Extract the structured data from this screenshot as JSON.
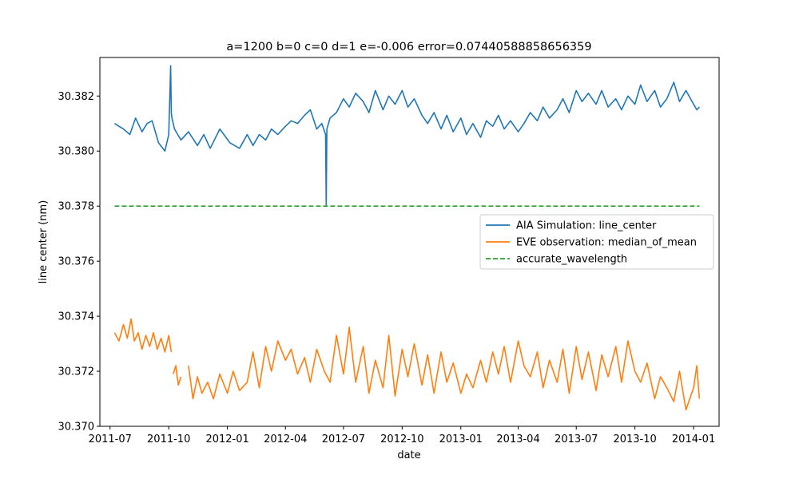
{
  "chart_data": {
    "type": "line",
    "title": "a=1200 b=0 c=0 d=1 e=-0.006 error=0.07440588858656359",
    "xlabel": "date",
    "ylabel": "line center (nm)",
    "ylim": [
      30.37,
      30.3834
    ],
    "xlim": [
      "2011-06-15",
      "2014-02-10"
    ],
    "x_ticks": [
      "2011-07",
      "2011-10",
      "2012-01",
      "2012-04",
      "2012-07",
      "2012-10",
      "2013-01",
      "2013-04",
      "2013-07",
      "2013-10",
      "2014-01"
    ],
    "y_ticks": [
      "30.370",
      "30.372",
      "30.374",
      "30.376",
      "30.378",
      "30.380",
      "30.382"
    ],
    "legend_position": "center-right",
    "grid": false,
    "series": [
      {
        "name": "AIA Simulation: line_center",
        "color": "#1f77b4",
        "style": "solid",
        "x": [
          "2011-07-08",
          "2011-07-15",
          "2011-07-22",
          "2011-08-01",
          "2011-08-10",
          "2011-08-20",
          "2011-08-28",
          "2011-09-05",
          "2011-09-15",
          "2011-09-25",
          "2011-10-01",
          "2011-10-04",
          "2011-10-05",
          "2011-10-06",
          "2011-10-10",
          "2011-10-20",
          "2011-11-01",
          "2011-11-15",
          "2011-11-25",
          "2011-12-05",
          "2011-12-20",
          "2012-01-05",
          "2012-01-20",
          "2012-02-01",
          "2012-02-10",
          "2012-02-20",
          "2012-03-01",
          "2012-03-10",
          "2012-03-20",
          "2012-04-01",
          "2012-04-10",
          "2012-04-20",
          "2012-05-01",
          "2012-05-10",
          "2012-05-20",
          "2012-05-28",
          "2012-06-03",
          "2012-06-04",
          "2012-06-05",
          "2012-06-10",
          "2012-06-20",
          "2012-07-01",
          "2012-07-10",
          "2012-07-20",
          "2012-08-01",
          "2012-08-10",
          "2012-08-20",
          "2012-09-01",
          "2012-09-10",
          "2012-09-20",
          "2012-10-01",
          "2012-10-10",
          "2012-10-20",
          "2012-11-01",
          "2012-11-10",
          "2012-11-20",
          "2012-12-01",
          "2012-12-10",
          "2012-12-20",
          "2013-01-01",
          "2013-01-10",
          "2013-01-20",
          "2013-02-01",
          "2013-02-10",
          "2013-02-20",
          "2013-03-01",
          "2013-03-10",
          "2013-03-20",
          "2013-04-01",
          "2013-04-10",
          "2013-04-20",
          "2013-05-01",
          "2013-05-10",
          "2013-05-20",
          "2013-06-01",
          "2013-06-10",
          "2013-06-20",
          "2013-07-01",
          "2013-07-10",
          "2013-07-20",
          "2013-08-01",
          "2013-08-10",
          "2013-08-20",
          "2013-09-01",
          "2013-09-10",
          "2013-09-20",
          "2013-10-01",
          "2013-10-10",
          "2013-10-20",
          "2013-11-01",
          "2013-11-10",
          "2013-11-20",
          "2013-12-01",
          "2013-12-10",
          "2013-12-20",
          "2014-01-01",
          "2014-01-06",
          "2014-01-10"
        ],
        "y": [
          30.381,
          30.3809,
          30.3808,
          30.3806,
          30.3812,
          30.3807,
          30.381,
          30.3811,
          30.3803,
          30.38,
          30.3806,
          30.3831,
          30.3814,
          30.3812,
          30.3808,
          30.3804,
          30.3807,
          30.3802,
          30.3806,
          30.3801,
          30.3808,
          30.3803,
          30.3801,
          30.3806,
          30.3802,
          30.3806,
          30.3804,
          30.3808,
          30.3806,
          30.3809,
          30.3811,
          30.381,
          30.3813,
          30.3815,
          30.3808,
          30.381,
          30.3806,
          30.378,
          30.3808,
          30.3812,
          30.3814,
          30.3819,
          30.3816,
          30.3821,
          30.3818,
          30.3814,
          30.3822,
          30.3815,
          30.382,
          30.3817,
          30.3822,
          30.3816,
          30.3819,
          30.3813,
          30.381,
          30.3814,
          30.3808,
          30.3813,
          30.3807,
          30.3812,
          30.3806,
          30.381,
          30.3805,
          30.3811,
          30.3809,
          30.3813,
          30.3808,
          30.3811,
          30.3807,
          30.381,
          30.3814,
          30.3811,
          30.3816,
          30.3812,
          30.3815,
          30.3819,
          30.3814,
          30.3822,
          30.3818,
          30.3821,
          30.3817,
          30.3822,
          30.3816,
          30.3819,
          30.3815,
          30.382,
          30.3817,
          30.3824,
          30.3818,
          30.3822,
          30.3816,
          30.3819,
          30.3825,
          30.3818,
          30.3822,
          30.3817,
          30.3815,
          30.3816
        ]
      },
      {
        "name": "EVE observation: median_of_mean",
        "color": "#ff7f0e",
        "style": "solid",
        "segments": [
          {
            "x": [
              "2011-07-08",
              "2011-07-15",
              "2011-07-22",
              "2011-07-28",
              "2011-08-03",
              "2011-08-08",
              "2011-08-14",
              "2011-08-20",
              "2011-08-26",
              "2011-09-01",
              "2011-09-07",
              "2011-09-13",
              "2011-09-19",
              "2011-09-25",
              "2011-10-01",
              "2011-10-05"
            ],
            "y": [
              30.3734,
              30.3731,
              30.3737,
              30.3732,
              30.3739,
              30.3731,
              30.3734,
              30.3728,
              30.3733,
              30.3729,
              30.3734,
              30.3728,
              30.3732,
              30.3727,
              30.3733,
              30.3727
            ]
          },
          {
            "x": [
              "2011-10-08",
              "2011-10-12",
              "2011-10-16",
              "2011-10-20"
            ],
            "y": [
              30.3719,
              30.3722,
              30.3715,
              30.3718
            ]
          },
          {
            "x": [
              "2011-11-01",
              "2011-11-08",
              "2011-11-15",
              "2011-11-22",
              "2011-12-01",
              "2011-12-10",
              "2011-12-20",
              "2012-01-01",
              "2012-01-10",
              "2012-01-20",
              "2012-02-01",
              "2012-02-10",
              "2012-02-20",
              "2012-03-01",
              "2012-03-10",
              "2012-03-20",
              "2012-04-01",
              "2012-04-10",
              "2012-04-20",
              "2012-05-01",
              "2012-05-10",
              "2012-05-20",
              "2012-06-01",
              "2012-06-10",
              "2012-06-20",
              "2012-07-01",
              "2012-07-10",
              "2012-07-20",
              "2012-08-01",
              "2012-08-10",
              "2012-08-20",
              "2012-09-01",
              "2012-09-10",
              "2012-09-20",
              "2012-10-01",
              "2012-10-10",
              "2012-10-20",
              "2012-11-01",
              "2012-11-10",
              "2012-11-20",
              "2012-12-01",
              "2012-12-10",
              "2012-12-20",
              "2013-01-01",
              "2013-01-10",
              "2013-01-20",
              "2013-02-01",
              "2013-02-10",
              "2013-02-20",
              "2013-03-01",
              "2013-03-10",
              "2013-03-20",
              "2013-04-01",
              "2013-04-10",
              "2013-04-20",
              "2013-05-01",
              "2013-05-10",
              "2013-05-20",
              "2013-06-01",
              "2013-06-10",
              "2013-06-20",
              "2013-07-01",
              "2013-07-10",
              "2013-07-20",
              "2013-08-01",
              "2013-08-10",
              "2013-08-20",
              "2013-09-01",
              "2013-09-10",
              "2013-09-20",
              "2013-10-01",
              "2013-10-10",
              "2013-10-20",
              "2013-11-01",
              "2013-11-10",
              "2013-11-20",
              "2013-12-01",
              "2013-12-10",
              "2013-12-20",
              "2014-01-01",
              "2014-01-06",
              "2014-01-10"
            ],
            "y": [
              30.3722,
              30.371,
              30.3718,
              30.3712,
              30.3716,
              30.371,
              30.3719,
              30.3712,
              30.372,
              30.3713,
              30.3716,
              30.3727,
              30.3714,
              30.3729,
              30.372,
              30.3731,
              30.3724,
              30.3728,
              30.3719,
              30.3725,
              30.3716,
              30.3728,
              30.372,
              30.3716,
              30.3733,
              30.3719,
              30.3736,
              30.3716,
              30.3729,
              30.3712,
              30.3724,
              30.3714,
              30.3733,
              30.3711,
              30.3728,
              30.3718,
              30.373,
              30.3715,
              30.3726,
              30.3712,
              30.3727,
              30.3716,
              30.3723,
              30.3712,
              30.3719,
              30.3714,
              30.3724,
              30.3716,
              30.3727,
              30.3719,
              30.3729,
              30.3716,
              30.3731,
              30.3722,
              30.3718,
              30.3727,
              30.3714,
              30.3724,
              30.3716,
              30.3728,
              30.3712,
              30.3729,
              30.3717,
              30.3727,
              30.3713,
              30.3726,
              30.3718,
              30.3729,
              30.3716,
              30.3731,
              30.372,
              30.3716,
              30.3723,
              30.371,
              30.3718,
              30.3714,
              30.3709,
              30.372,
              30.3706,
              30.3714,
              30.3722,
              30.371
            ]
          }
        ]
      },
      {
        "name": "accurate_wavelength",
        "color": "#2ca02c",
        "style": "dashed",
        "x": [
          "2011-07-08",
          "2014-01-10"
        ],
        "y": [
          30.378,
          30.378
        ]
      }
    ]
  }
}
